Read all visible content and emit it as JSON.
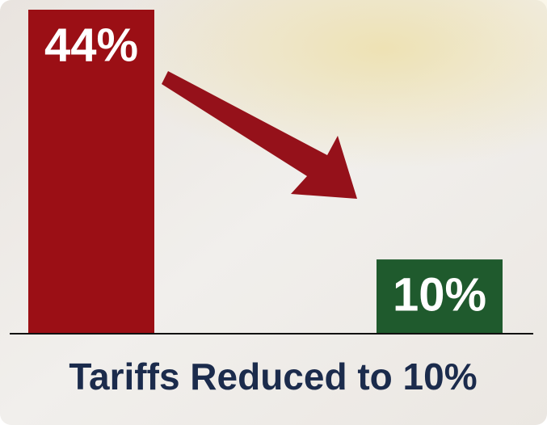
{
  "chart_data": {
    "type": "bar",
    "title": "Tariffs Reduced to 10%",
    "categories": [
      null,
      null
    ],
    "values": [
      44,
      10
    ],
    "value_labels": [
      "44%",
      "10%"
    ],
    "colors": [
      "#9b0f15",
      "#1f5a2d"
    ]
  }
}
